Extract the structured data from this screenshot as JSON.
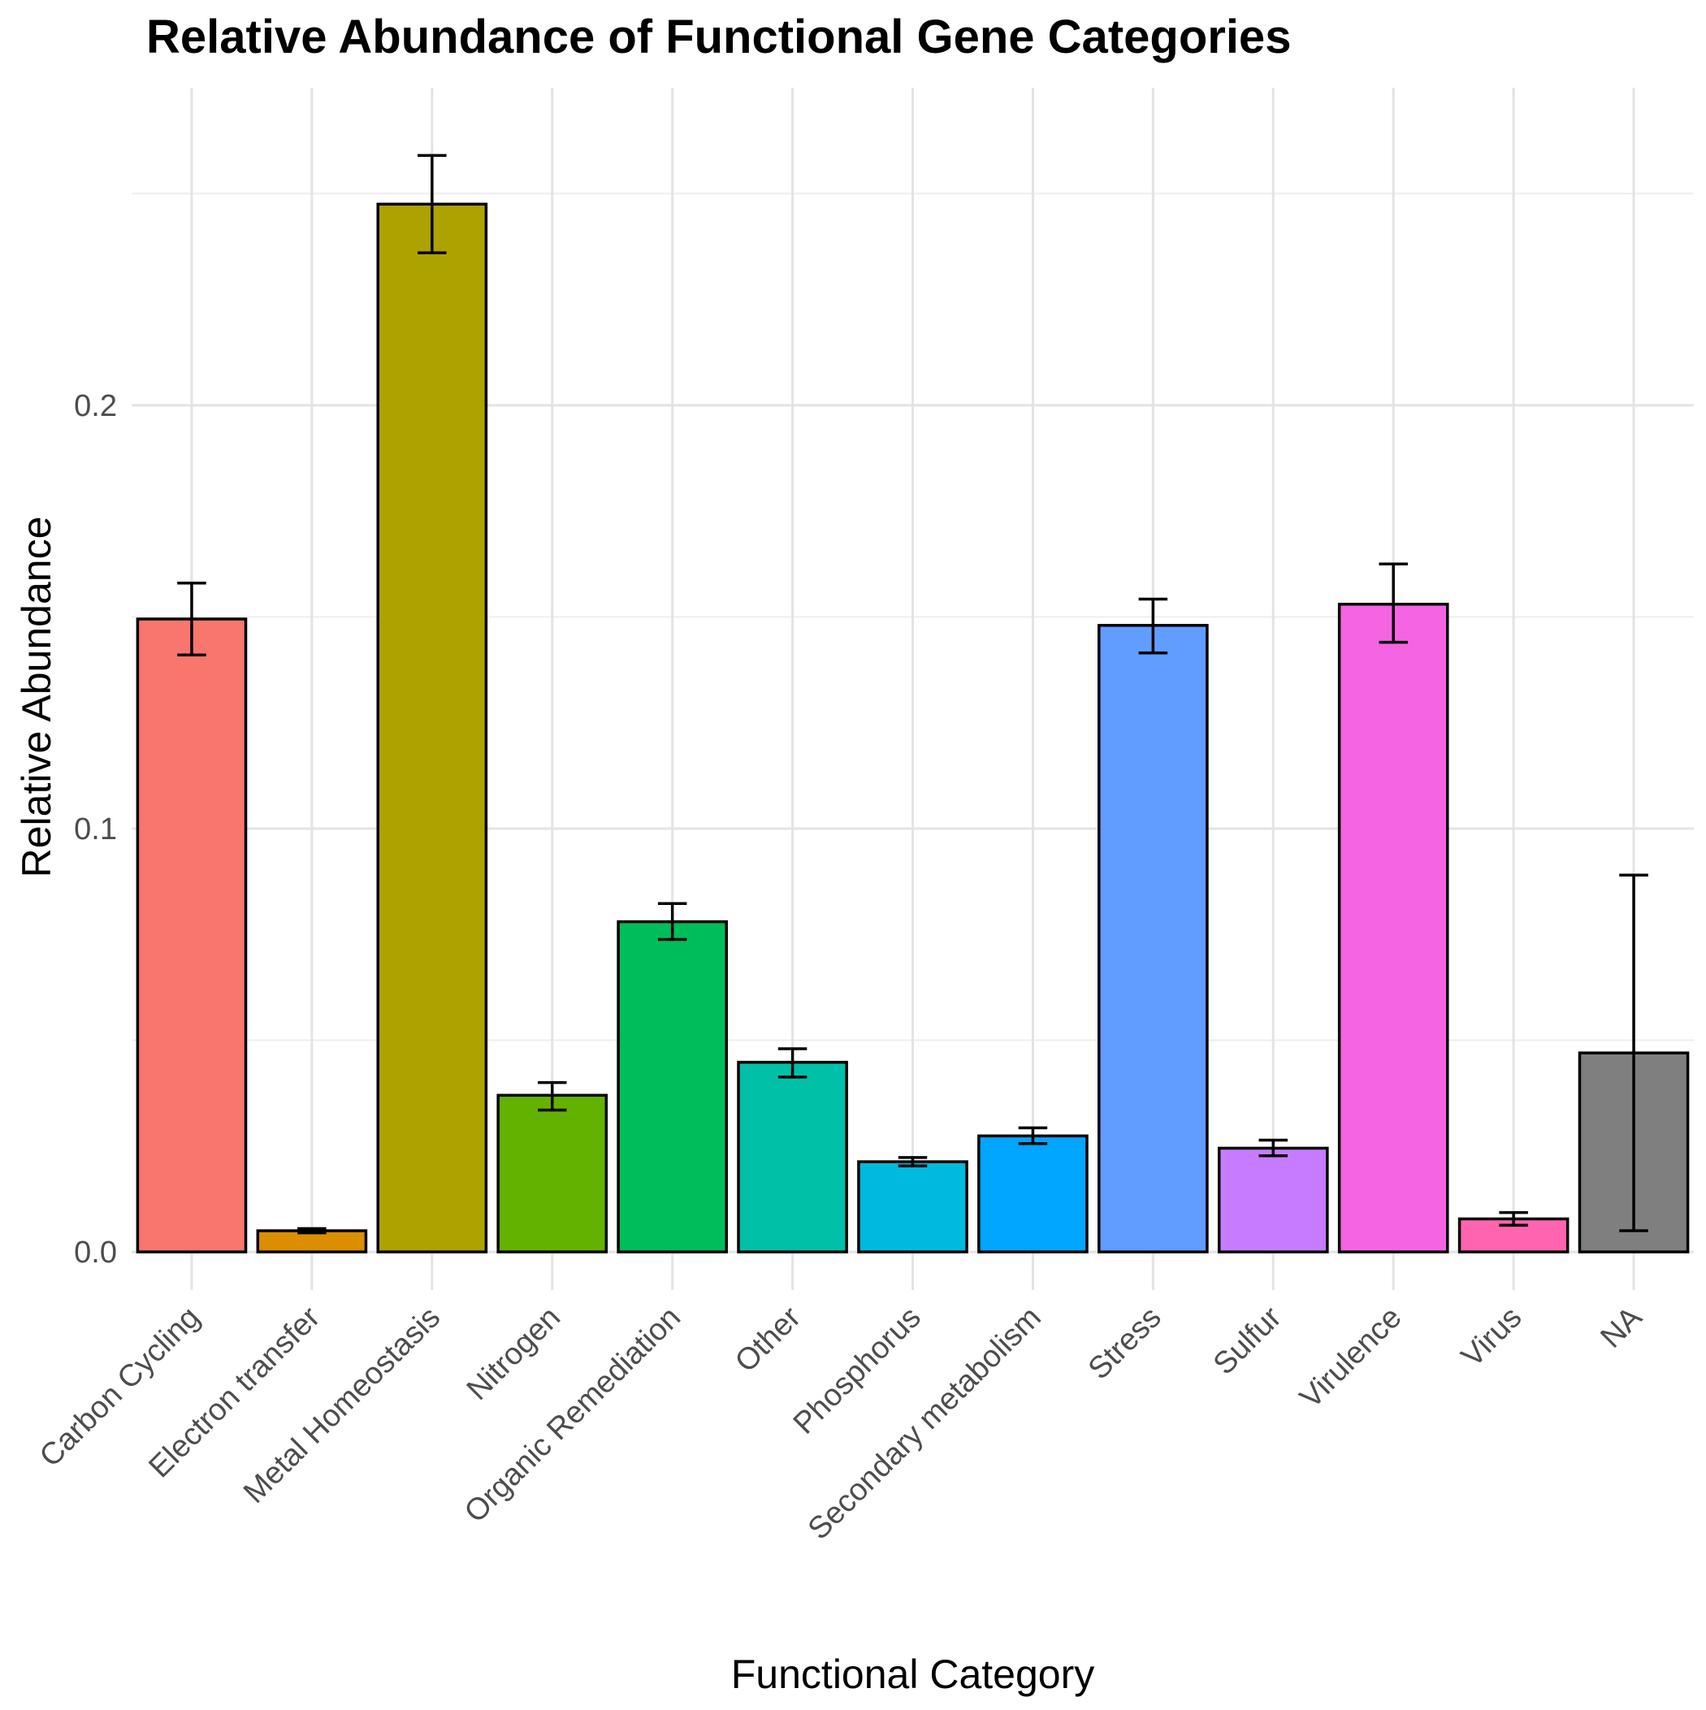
{
  "chart_data": {
    "type": "bar",
    "title": "Relative Abundance of Functional Gene Categories",
    "xlabel": "Functional Category",
    "ylabel": "Relative Abundance",
    "ylim": [
      -0.009,
      0.275
    ],
    "yticks": [
      0.0,
      0.1,
      0.2
    ],
    "ytick_labels": [
      "0.0",
      "0.1",
      "0.2"
    ],
    "grid": true,
    "legend": "none",
    "categories": [
      "Carbon Cycling",
      "Electron transfer",
      "Metal Homeostasis",
      "Nitrogen",
      "Organic Remediation",
      "Other",
      "Phosphorus",
      "Secondary metabolism",
      "Stress",
      "Sulfur",
      "Virulence",
      "Virus",
      "NA"
    ],
    "values": [
      0.1495,
      0.005,
      0.2475,
      0.037,
      0.078,
      0.0448,
      0.0213,
      0.0274,
      0.148,
      0.0245,
      0.153,
      0.0078,
      0.047
    ],
    "error_low": [
      0.141,
      0.0045,
      0.236,
      0.0335,
      0.0738,
      0.0413,
      0.0203,
      0.0256,
      0.1415,
      0.0227,
      0.144,
      0.0063,
      0.005
    ],
    "error_high": [
      0.158,
      0.0055,
      0.259,
      0.04,
      0.0823,
      0.048,
      0.0223,
      0.0293,
      0.1542,
      0.0264,
      0.1625,
      0.0093,
      0.089
    ],
    "colors": [
      "#F8766D",
      "#DB8E00",
      "#AEA200",
      "#64B200",
      "#00BD5C",
      "#00C1A7",
      "#00BADE",
      "#00A6FF",
      "#619CFF",
      "#C77CFF",
      "#F564E3",
      "#FF64B0",
      "#7F7F7F"
    ]
  }
}
